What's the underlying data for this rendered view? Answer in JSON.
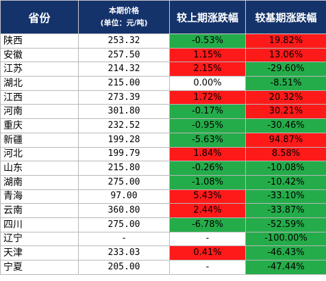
{
  "headers": {
    "province": "省份",
    "price_line1": "本期价格",
    "price_line2": "(单位：元/吨)",
    "mom": "较上期涨跌幅",
    "yoy": "较基期涨跌幅"
  },
  "colors": {
    "header_bg": "#15336b",
    "up_red": "#ff1a1a",
    "down_green": "#25ac4a",
    "flat_white": "#ffffff"
  },
  "rows": [
    {
      "province": "陕西",
      "price": "253.32",
      "mom": "-0.53%",
      "mom_color": "green",
      "yoy": "19.82%",
      "yoy_color": "red"
    },
    {
      "province": "安徽",
      "price": "257.50",
      "mom": "1.15%",
      "mom_color": "red",
      "yoy": "13.06%",
      "yoy_color": "red"
    },
    {
      "province": "江苏",
      "price": "214.32",
      "mom": "2.15%",
      "mom_color": "red",
      "yoy": "-29.60%",
      "yoy_color": "green"
    },
    {
      "province": "湖北",
      "price": "215.00",
      "mom": "0.00%",
      "mom_color": "white",
      "yoy": "-8.51%",
      "yoy_color": "green"
    },
    {
      "province": "江西",
      "price": "273.39",
      "mom": "1.72%",
      "mom_color": "red",
      "yoy": "20.32%",
      "yoy_color": "red"
    },
    {
      "province": "河南",
      "price": "301.80",
      "mom": "-0.17%",
      "mom_color": "green",
      "yoy": "30.21%",
      "yoy_color": "red"
    },
    {
      "province": "重庆",
      "price": "232.52",
      "mom": "-0.95%",
      "mom_color": "green",
      "yoy": "-30.46%",
      "yoy_color": "green"
    },
    {
      "province": "新疆",
      "price": "199.28",
      "mom": "-5.63%",
      "mom_color": "green",
      "yoy": "94.87%",
      "yoy_color": "red"
    },
    {
      "province": "河北",
      "price": "199.79",
      "mom": "1.84%",
      "mom_color": "red",
      "yoy": "8.58%",
      "yoy_color": "red"
    },
    {
      "province": "山东",
      "price": "215.80",
      "mom": "-0.26%",
      "mom_color": "green",
      "yoy": "-10.08%",
      "yoy_color": "green"
    },
    {
      "province": "湖南",
      "price": "275.00",
      "mom": "-1.08%",
      "mom_color": "green",
      "yoy": "-10.42%",
      "yoy_color": "green"
    },
    {
      "province": "青海",
      "price": "97.00",
      "mom": "5.43%",
      "mom_color": "red",
      "yoy": "-33.10%",
      "yoy_color": "green"
    },
    {
      "province": "云南",
      "price": "360.80",
      "mom": "2.44%",
      "mom_color": "red",
      "yoy": "-33.87%",
      "yoy_color": "green"
    },
    {
      "province": "四川",
      "price": "275.00",
      "mom": "-6.78%",
      "mom_color": "green",
      "yoy": "-52.59%",
      "yoy_color": "green"
    },
    {
      "province": "辽宁",
      "price": "-",
      "mom": "-",
      "mom_color": "white",
      "yoy": "-100.00%",
      "yoy_color": "green"
    },
    {
      "province": "天津",
      "price": "233.03",
      "mom": "0.41%",
      "mom_color": "red",
      "yoy": "-46.43%",
      "yoy_color": "green"
    },
    {
      "province": "宁夏",
      "price": "205.00",
      "mom": "-",
      "mom_color": "white",
      "yoy": "-47.44%",
      "yoy_color": "green"
    }
  ]
}
